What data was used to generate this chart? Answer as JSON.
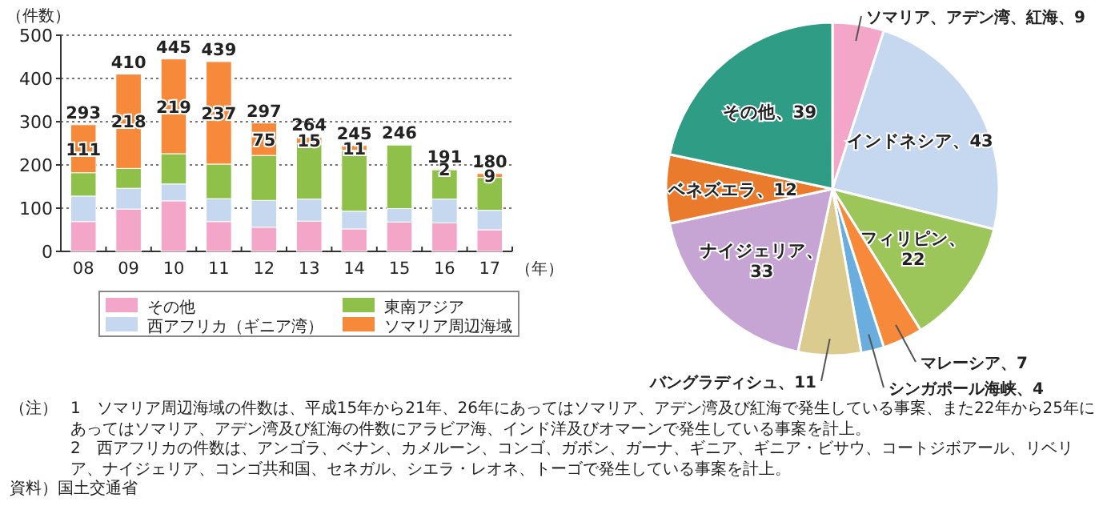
{
  "chart_data": [
    {
      "type": "bar",
      "stacked": true,
      "ylabel": "（件数）",
      "xlabel": "（年）",
      "categories": [
        "08",
        "09",
        "10",
        "11",
        "12",
        "13",
        "14",
        "15",
        "16",
        "17"
      ],
      "series": [
        {
          "name": "その他",
          "color": "#f3a6c8",
          "values": [
            69,
            98,
            117,
            69,
            56,
            70,
            52,
            68,
            66,
            50
          ]
        },
        {
          "name": "西アフリカ（ギニア湾）",
          "color": "#c5d8ef",
          "values": [
            59,
            48,
            39,
            53,
            62,
            51,
            41,
            31,
            55,
            45
          ]
        },
        {
          "name": "東南アジア",
          "color": "#8fc04a",
          "values": [
            54,
            46,
            70,
            80,
            104,
            128,
            141,
            147,
            68,
            76
          ]
        },
        {
          "name": "ソマリア周辺海域",
          "color": "#f7893a",
          "values": [
            111,
            218,
            219,
            237,
            75,
            15,
            11,
            0,
            2,
            9
          ],
          "value_labels": [
            "111",
            "218",
            "219",
            "237",
            "75",
            "15",
            "11",
            null,
            "2",
            "9"
          ]
        }
      ],
      "totals": [
        "293",
        "410",
        "445",
        "439",
        "297",
        "264",
        "245",
        "246",
        "191",
        "180"
      ],
      "ylim": [
        0,
        500
      ],
      "yticks": [
        0,
        100,
        200,
        300,
        400,
        500
      ],
      "grid": "y",
      "legend": "bottom",
      "annotations": [
        "（注）",
        "1　ソマリア周辺海域の件数は、平成15年から21年、26年にあってはソマリア、アデン湾及び紅海で発生している事案、また22年から25年にあってはソマリア、アデン湾及び紅海の件数にアラビア海、インド洋及びオマーンで発生している事案を計上。",
        "2　西アフリカの件数は、アンゴラ、ベナン、カメルーン、コンゴ、ガボン、ガーナ、ギニア、ギニア・ビサウ、コートジボアール、リベリア、ナイジェリア、コンゴ共和国、セネガル、シエラ・レオネ、トーゴで発生している事案を計上。",
        "資料）国土交通省"
      ]
    },
    {
      "type": "pie",
      "categories": [
        "ソマリア、アデン湾、紅海、9",
        "インドネシア、43",
        "フィリピン、22",
        "マレーシア、7",
        "シンガポール海峡、4",
        "バングラディシュ、11",
        "ナイジェリア、33",
        "ベネズエラ、12",
        "その他、39"
      ],
      "values": [
        9,
        43,
        22,
        7,
        4,
        11,
        33,
        12,
        39
      ],
      "colors": [
        "#f3a6c8",
        "#c5d8ef",
        "#9cc65a",
        "#f7893a",
        "#6aaee0",
        "#dccb8e",
        "#c6a4d4",
        "#ea7a2c",
        "#2f9c86"
      ]
    }
  ]
}
